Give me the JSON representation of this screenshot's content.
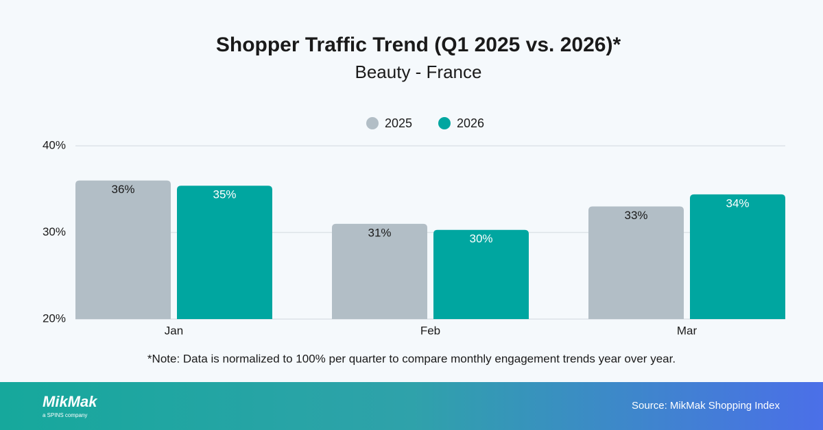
{
  "chart_data": {
    "type": "bar",
    "title": "Shopper Traffic Trend (Q1 2025 vs. 2026)*",
    "subtitle": "Beauty - France",
    "categories": [
      "Jan",
      "Feb",
      "Mar"
    ],
    "series": [
      {
        "name": "2025",
        "color": "#b2bec6",
        "values": [
          36.0,
          31.0,
          33.0
        ],
        "value_labels": [
          "36%",
          "31%",
          "33%"
        ]
      },
      {
        "name": "2026",
        "color": "#00a6a0",
        "values": [
          35.4,
          30.3,
          34.4
        ],
        "value_labels": [
          "35%",
          "30%",
          "34%"
        ]
      }
    ],
    "ylim": [
      20,
      40
    ],
    "yticks": [
      {
        "value": 20,
        "label": "20%"
      },
      {
        "value": 30,
        "label": "30%"
      },
      {
        "value": 40,
        "label": "40%"
      }
    ],
    "grid": true,
    "legend": "top",
    "note": "*Note: Data is normalized to 100% per quarter to compare monthly engagement trends year over year.",
    "brand": "MikMak",
    "brand_tagline": "a SPINS company",
    "source": "Source: MikMak Shopping Index"
  }
}
